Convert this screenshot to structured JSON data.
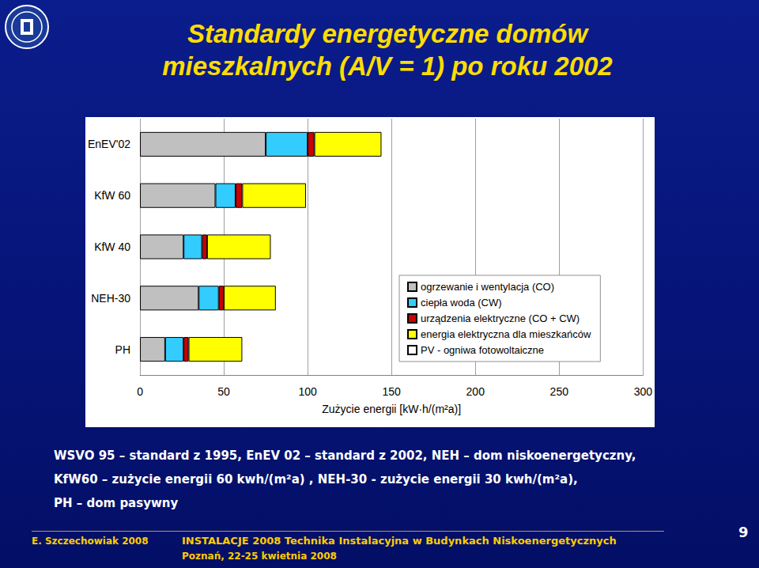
{
  "chart_data": {
    "type": "bar",
    "title": "Standardy energetyczne domów mieszkalnych (A/V = 1) po roku 2002",
    "orientation": "horizontal",
    "stacked": true,
    "categories": [
      "EnEV'02",
      "KfW 60",
      "KfW 40",
      "NEH-30",
      "PH"
    ],
    "series": [
      {
        "name": "ogrzewanie i wentylacja (CO)",
        "color": "#c0c0c0",
        "values": [
          75,
          45,
          26,
          35,
          15
        ]
      },
      {
        "name": "ciepła woda (CW)",
        "color": "#33ccff",
        "values": [
          25,
          12,
          11,
          12,
          11
        ]
      },
      {
        "name": "urządzenia elektryczne (CO + CW)",
        "color": "#cc0000",
        "values": [
          4,
          4,
          3,
          3,
          3
        ]
      },
      {
        "name": "energia elektryczna dla mieszkańców",
        "color": "#ffff00",
        "values": [
          40,
          38,
          38,
          31,
          32
        ]
      },
      {
        "name": "PV - ogniwa fotowoltaiczne",
        "color": "#ffffff",
        "values": [
          null,
          null,
          null,
          null,
          null
        ]
      }
    ],
    "xlabel": "Zużycie energii [kW·h/(m²a)]",
    "xlim": [
      0,
      300
    ],
    "xticks": [
      0,
      50,
      100,
      150,
      200,
      250,
      300
    ],
    "grid": true,
    "legend": "right"
  },
  "notes": [
    "WSVO 95 – standard z 1995, EnEV 02 – standard z 2002, NEH – dom niskoenergetyczny,",
    "KfW60 – zużycie energii 60 kwh/(m²a) , NEH-30 - zużycie energii 30 kwh/(m²a),",
    "PH – dom pasywny"
  ],
  "footer": {
    "author": "E. Szczechowiak 2008",
    "event": "INSTALACJE 2008 Technika Instalacyjna w Budynkach Niskoenergetycznych",
    "place": "Poznań, 22-25 kwietnia 2008",
    "page": 9
  }
}
